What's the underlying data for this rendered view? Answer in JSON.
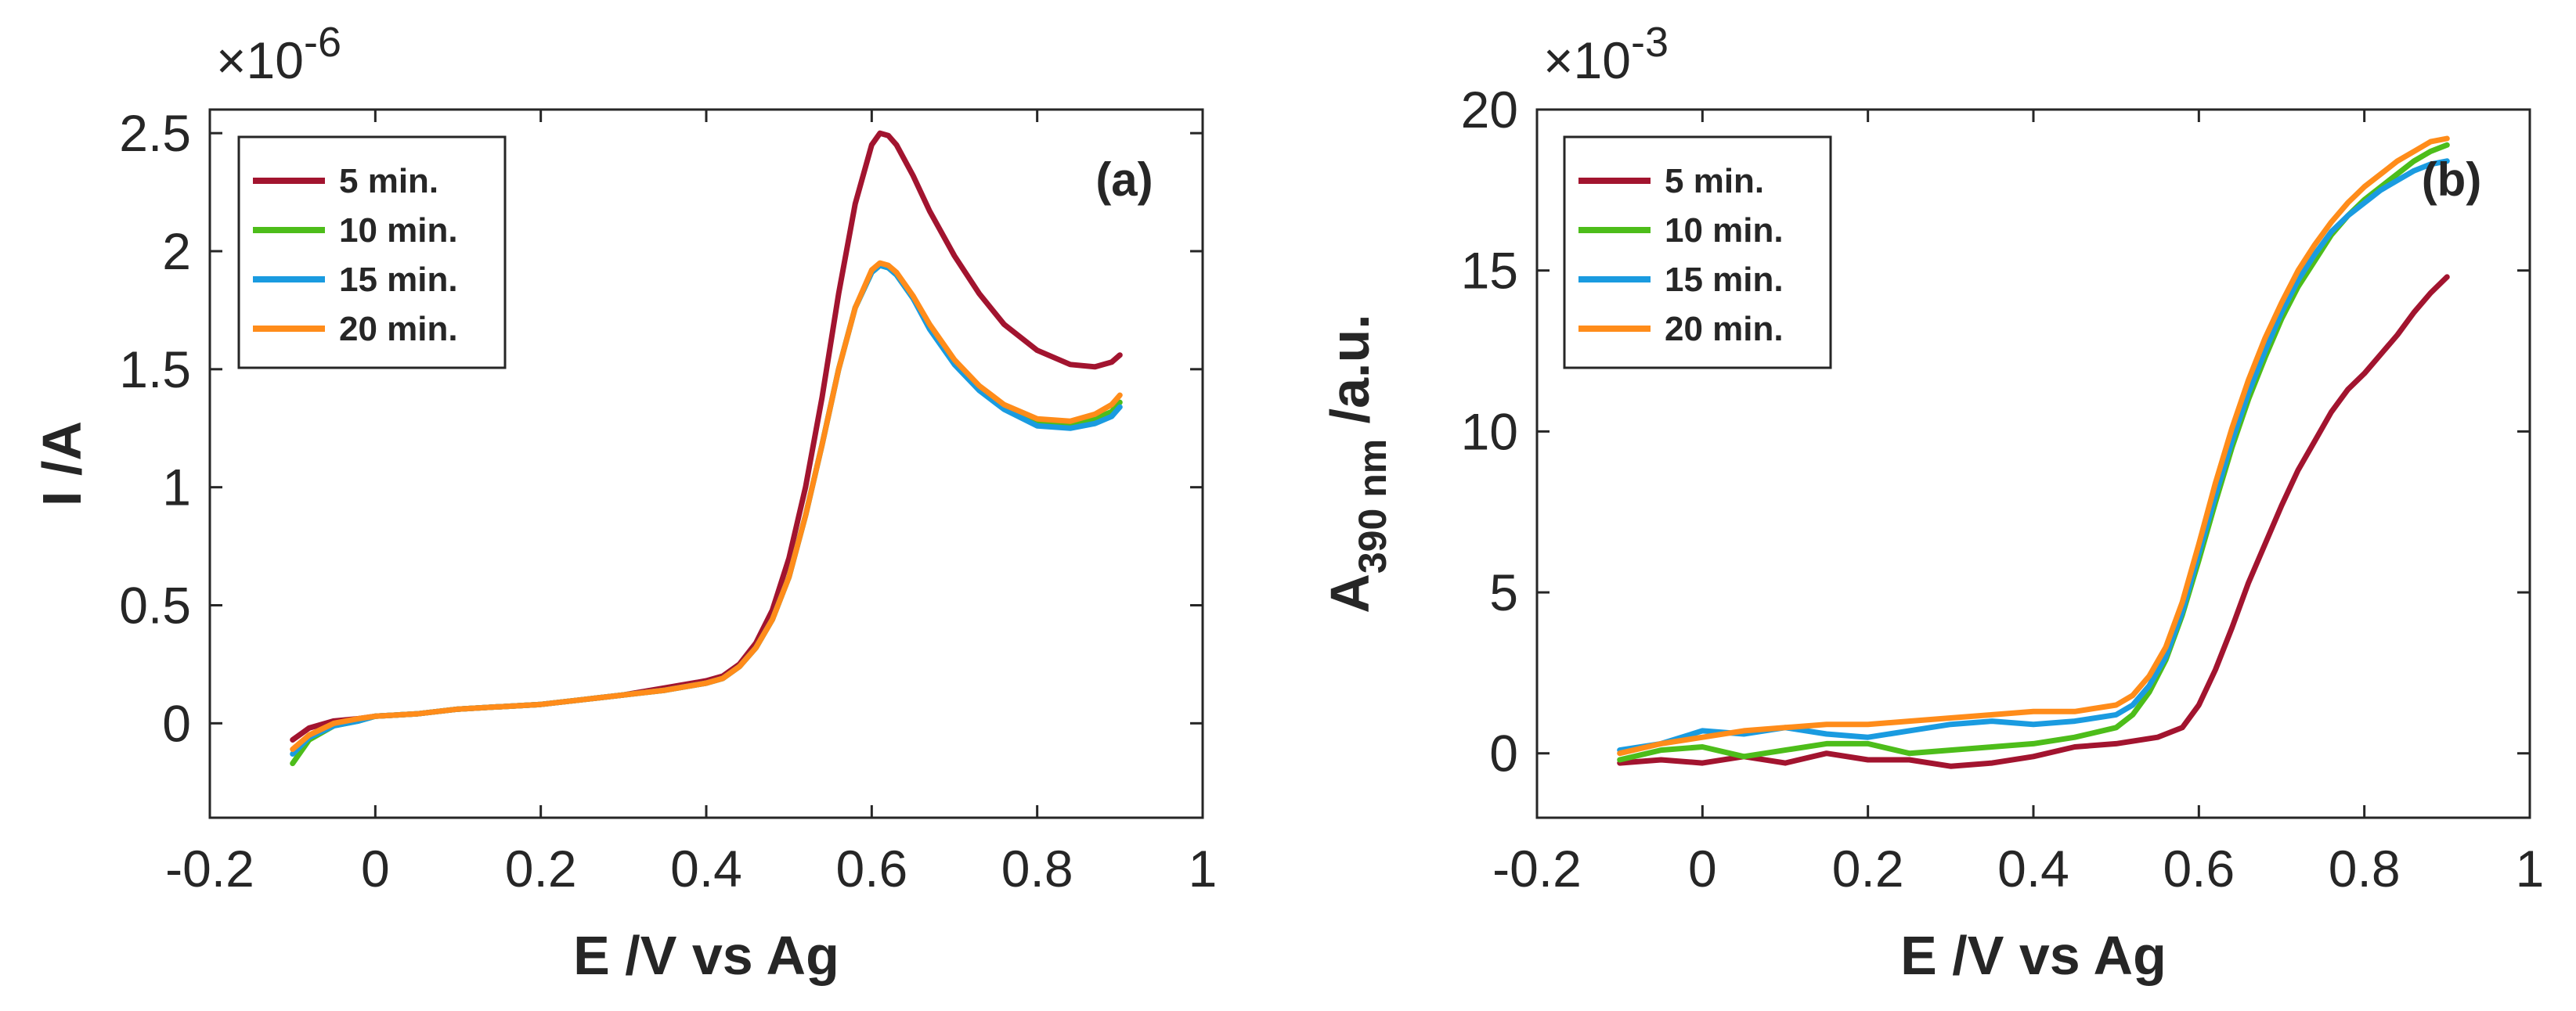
{
  "chart_data": [
    {
      "type": "line",
      "panel_label": "(a)",
      "xlabel": "E /V vs Ag",
      "ylabel": "I /A",
      "ylabel_sub": "",
      "ylabel_suffix": "",
      "y_exponent_base": "×10",
      "y_exponent_power": "-6",
      "xlim": [
        -0.2,
        1.0
      ],
      "ylim": [
        -0.4,
        2.6
      ],
      "xticks": [
        -0.2,
        0,
        0.2,
        0.4,
        0.6,
        0.8,
        1
      ],
      "xtick_labels": [
        "-0.2",
        "0",
        "0.2",
        "0.4",
        "0.6",
        "0.8",
        "1"
      ],
      "yticks": [
        0,
        0.5,
        1,
        1.5,
        2,
        2.5
      ],
      "ytick_labels": [
        "0",
        "0.5",
        "1",
        "1.5",
        "2",
        "2.5"
      ],
      "grid": false,
      "legend_position": "top-left",
      "series": [
        {
          "name": "5 min.",
          "color": "#a2142f",
          "x": [
            -0.1,
            -0.08,
            -0.05,
            -0.02,
            0,
            0.05,
            0.1,
            0.15,
            0.2,
            0.25,
            0.3,
            0.35,
            0.4,
            0.42,
            0.44,
            0.46,
            0.48,
            0.5,
            0.52,
            0.54,
            0.56,
            0.58,
            0.6,
            0.61,
            0.62,
            0.63,
            0.65,
            0.67,
            0.7,
            0.73,
            0.76,
            0.8,
            0.84,
            0.87,
            0.89,
            0.9
          ],
          "y": [
            -0.07,
            -0.02,
            0.01,
            0.02,
            0.03,
            0.04,
            0.06,
            0.07,
            0.08,
            0.1,
            0.12,
            0.15,
            0.18,
            0.2,
            0.25,
            0.34,
            0.48,
            0.7,
            1.0,
            1.38,
            1.82,
            2.2,
            2.45,
            2.5,
            2.49,
            2.45,
            2.32,
            2.17,
            1.98,
            1.82,
            1.69,
            1.58,
            1.52,
            1.51,
            1.53,
            1.56
          ]
        },
        {
          "name": "10 min.",
          "color": "#4dbd1a",
          "x": [
            -0.1,
            -0.08,
            -0.05,
            -0.02,
            0,
            0.05,
            0.1,
            0.15,
            0.2,
            0.25,
            0.3,
            0.35,
            0.4,
            0.42,
            0.44,
            0.46,
            0.48,
            0.5,
            0.52,
            0.54,
            0.56,
            0.58,
            0.6,
            0.61,
            0.62,
            0.63,
            0.65,
            0.67,
            0.7,
            0.73,
            0.76,
            0.8,
            0.84,
            0.87,
            0.89,
            0.9
          ],
          "y": [
            -0.17,
            -0.07,
            -0.01,
            0.01,
            0.03,
            0.04,
            0.06,
            0.07,
            0.08,
            0.1,
            0.12,
            0.14,
            0.17,
            0.19,
            0.24,
            0.32,
            0.44,
            0.62,
            0.88,
            1.18,
            1.5,
            1.76,
            1.91,
            1.94,
            1.93,
            1.9,
            1.8,
            1.68,
            1.53,
            1.42,
            1.34,
            1.27,
            1.26,
            1.29,
            1.32,
            1.36
          ]
        },
        {
          "name": "15 min.",
          "color": "#1a9be0",
          "x": [
            -0.1,
            -0.08,
            -0.05,
            -0.02,
            0,
            0.05,
            0.1,
            0.15,
            0.2,
            0.25,
            0.3,
            0.35,
            0.4,
            0.42,
            0.44,
            0.46,
            0.48,
            0.5,
            0.52,
            0.54,
            0.56,
            0.58,
            0.6,
            0.61,
            0.62,
            0.63,
            0.65,
            0.67,
            0.7,
            0.73,
            0.76,
            0.8,
            0.84,
            0.87,
            0.89,
            0.9
          ],
          "y": [
            -0.13,
            -0.06,
            -0.01,
            0.01,
            0.03,
            0.04,
            0.06,
            0.07,
            0.08,
            0.1,
            0.12,
            0.14,
            0.17,
            0.19,
            0.24,
            0.32,
            0.44,
            0.62,
            0.88,
            1.18,
            1.5,
            1.76,
            1.91,
            1.94,
            1.93,
            1.9,
            1.8,
            1.67,
            1.52,
            1.41,
            1.33,
            1.26,
            1.25,
            1.27,
            1.3,
            1.34
          ]
        },
        {
          "name": "20 min.",
          "color": "#ff8c1a",
          "x": [
            -0.1,
            -0.08,
            -0.05,
            -0.02,
            0,
            0.05,
            0.1,
            0.15,
            0.2,
            0.25,
            0.3,
            0.35,
            0.4,
            0.42,
            0.44,
            0.46,
            0.48,
            0.5,
            0.52,
            0.54,
            0.56,
            0.58,
            0.6,
            0.61,
            0.62,
            0.63,
            0.65,
            0.67,
            0.7,
            0.73,
            0.76,
            0.8,
            0.84,
            0.87,
            0.89,
            0.9
          ],
          "y": [
            -0.11,
            -0.05,
            0.0,
            0.02,
            0.03,
            0.04,
            0.06,
            0.07,
            0.08,
            0.1,
            0.12,
            0.14,
            0.17,
            0.19,
            0.24,
            0.32,
            0.44,
            0.62,
            0.88,
            1.18,
            1.5,
            1.76,
            1.92,
            1.95,
            1.94,
            1.91,
            1.81,
            1.69,
            1.54,
            1.43,
            1.35,
            1.29,
            1.28,
            1.31,
            1.35,
            1.39
          ]
        }
      ]
    },
    {
      "type": "line",
      "panel_label": "(b)",
      "xlabel": "E /V vs Ag",
      "ylabel": "A",
      "ylabel_sub": "390 nm",
      "ylabel_suffix": " /a.u.",
      "y_exponent_base": "×10",
      "y_exponent_power": "-3",
      "xlim": [
        -0.2,
        1.0
      ],
      "ylim": [
        -2,
        20
      ],
      "xticks": [
        -0.2,
        0,
        0.2,
        0.4,
        0.6,
        0.8,
        1
      ],
      "xtick_labels": [
        "-0.2",
        "0",
        "0.2",
        "0.4",
        "0.6",
        "0.8",
        "1"
      ],
      "yticks": [
        0,
        5,
        10,
        15,
        20
      ],
      "ytick_labels": [
        "0",
        "5",
        "10",
        "15",
        "20"
      ],
      "grid": false,
      "legend_position": "top-left",
      "series": [
        {
          "name": "5 min.",
          "color": "#a2142f",
          "x": [
            -0.1,
            -0.05,
            0,
            0.05,
            0.1,
            0.15,
            0.2,
            0.25,
            0.3,
            0.35,
            0.4,
            0.45,
            0.5,
            0.55,
            0.58,
            0.6,
            0.62,
            0.64,
            0.66,
            0.68,
            0.7,
            0.72,
            0.74,
            0.76,
            0.78,
            0.8,
            0.82,
            0.84,
            0.86,
            0.88,
            0.9
          ],
          "y": [
            -0.3,
            -0.2,
            -0.3,
            -0.1,
            -0.3,
            0.0,
            -0.2,
            -0.2,
            -0.4,
            -0.3,
            -0.1,
            0.2,
            0.3,
            0.5,
            0.8,
            1.5,
            2.6,
            3.9,
            5.3,
            6.5,
            7.7,
            8.8,
            9.7,
            10.6,
            11.3,
            11.8,
            12.4,
            13.0,
            13.7,
            14.3,
            14.8
          ]
        },
        {
          "name": "10 min.",
          "color": "#4dbd1a",
          "x": [
            -0.1,
            -0.05,
            0,
            0.05,
            0.1,
            0.15,
            0.2,
            0.25,
            0.3,
            0.35,
            0.4,
            0.45,
            0.5,
            0.52,
            0.54,
            0.56,
            0.58,
            0.6,
            0.62,
            0.64,
            0.66,
            0.68,
            0.7,
            0.72,
            0.74,
            0.76,
            0.78,
            0.8,
            0.82,
            0.84,
            0.86,
            0.88,
            0.9
          ],
          "y": [
            -0.2,
            0.1,
            0.2,
            -0.1,
            0.1,
            0.3,
            0.3,
            0.0,
            0.1,
            0.2,
            0.3,
            0.5,
            0.8,
            1.2,
            1.9,
            2.9,
            4.3,
            6.0,
            7.8,
            9.5,
            11.0,
            12.3,
            13.5,
            14.5,
            15.3,
            16.1,
            16.7,
            17.2,
            17.6,
            18.0,
            18.4,
            18.7,
            18.9
          ]
        },
        {
          "name": "15 min.",
          "color": "#1a9be0",
          "x": [
            -0.1,
            -0.05,
            0,
            0.05,
            0.1,
            0.15,
            0.2,
            0.25,
            0.3,
            0.35,
            0.4,
            0.45,
            0.5,
            0.52,
            0.54,
            0.56,
            0.58,
            0.6,
            0.62,
            0.64,
            0.66,
            0.68,
            0.7,
            0.72,
            0.74,
            0.76,
            0.78,
            0.8,
            0.82,
            0.84,
            0.86,
            0.88,
            0.9
          ],
          "y": [
            0.1,
            0.3,
            0.7,
            0.6,
            0.8,
            0.6,
            0.5,
            0.7,
            0.9,
            1.0,
            0.9,
            1.0,
            1.2,
            1.5,
            2.1,
            3.0,
            4.4,
            6.2,
            8.0,
            9.7,
            11.2,
            12.5,
            13.7,
            14.7,
            15.5,
            16.2,
            16.7,
            17.1,
            17.5,
            17.8,
            18.1,
            18.3,
            18.4
          ]
        },
        {
          "name": "20 min.",
          "color": "#ff8c1a",
          "x": [
            -0.1,
            -0.05,
            0,
            0.05,
            0.1,
            0.15,
            0.2,
            0.25,
            0.3,
            0.35,
            0.4,
            0.45,
            0.5,
            0.52,
            0.54,
            0.56,
            0.58,
            0.6,
            0.62,
            0.64,
            0.66,
            0.68,
            0.7,
            0.72,
            0.74,
            0.76,
            0.78,
            0.8,
            0.82,
            0.84,
            0.86,
            0.88,
            0.9
          ],
          "y": [
            0.0,
            0.3,
            0.5,
            0.7,
            0.8,
            0.9,
            0.9,
            1.0,
            1.1,
            1.2,
            1.3,
            1.3,
            1.5,
            1.8,
            2.4,
            3.3,
            4.7,
            6.5,
            8.4,
            10.1,
            11.6,
            12.9,
            14.0,
            15.0,
            15.8,
            16.5,
            17.1,
            17.6,
            18.0,
            18.4,
            18.7,
            19.0,
            19.1
          ]
        }
      ]
    }
  ]
}
